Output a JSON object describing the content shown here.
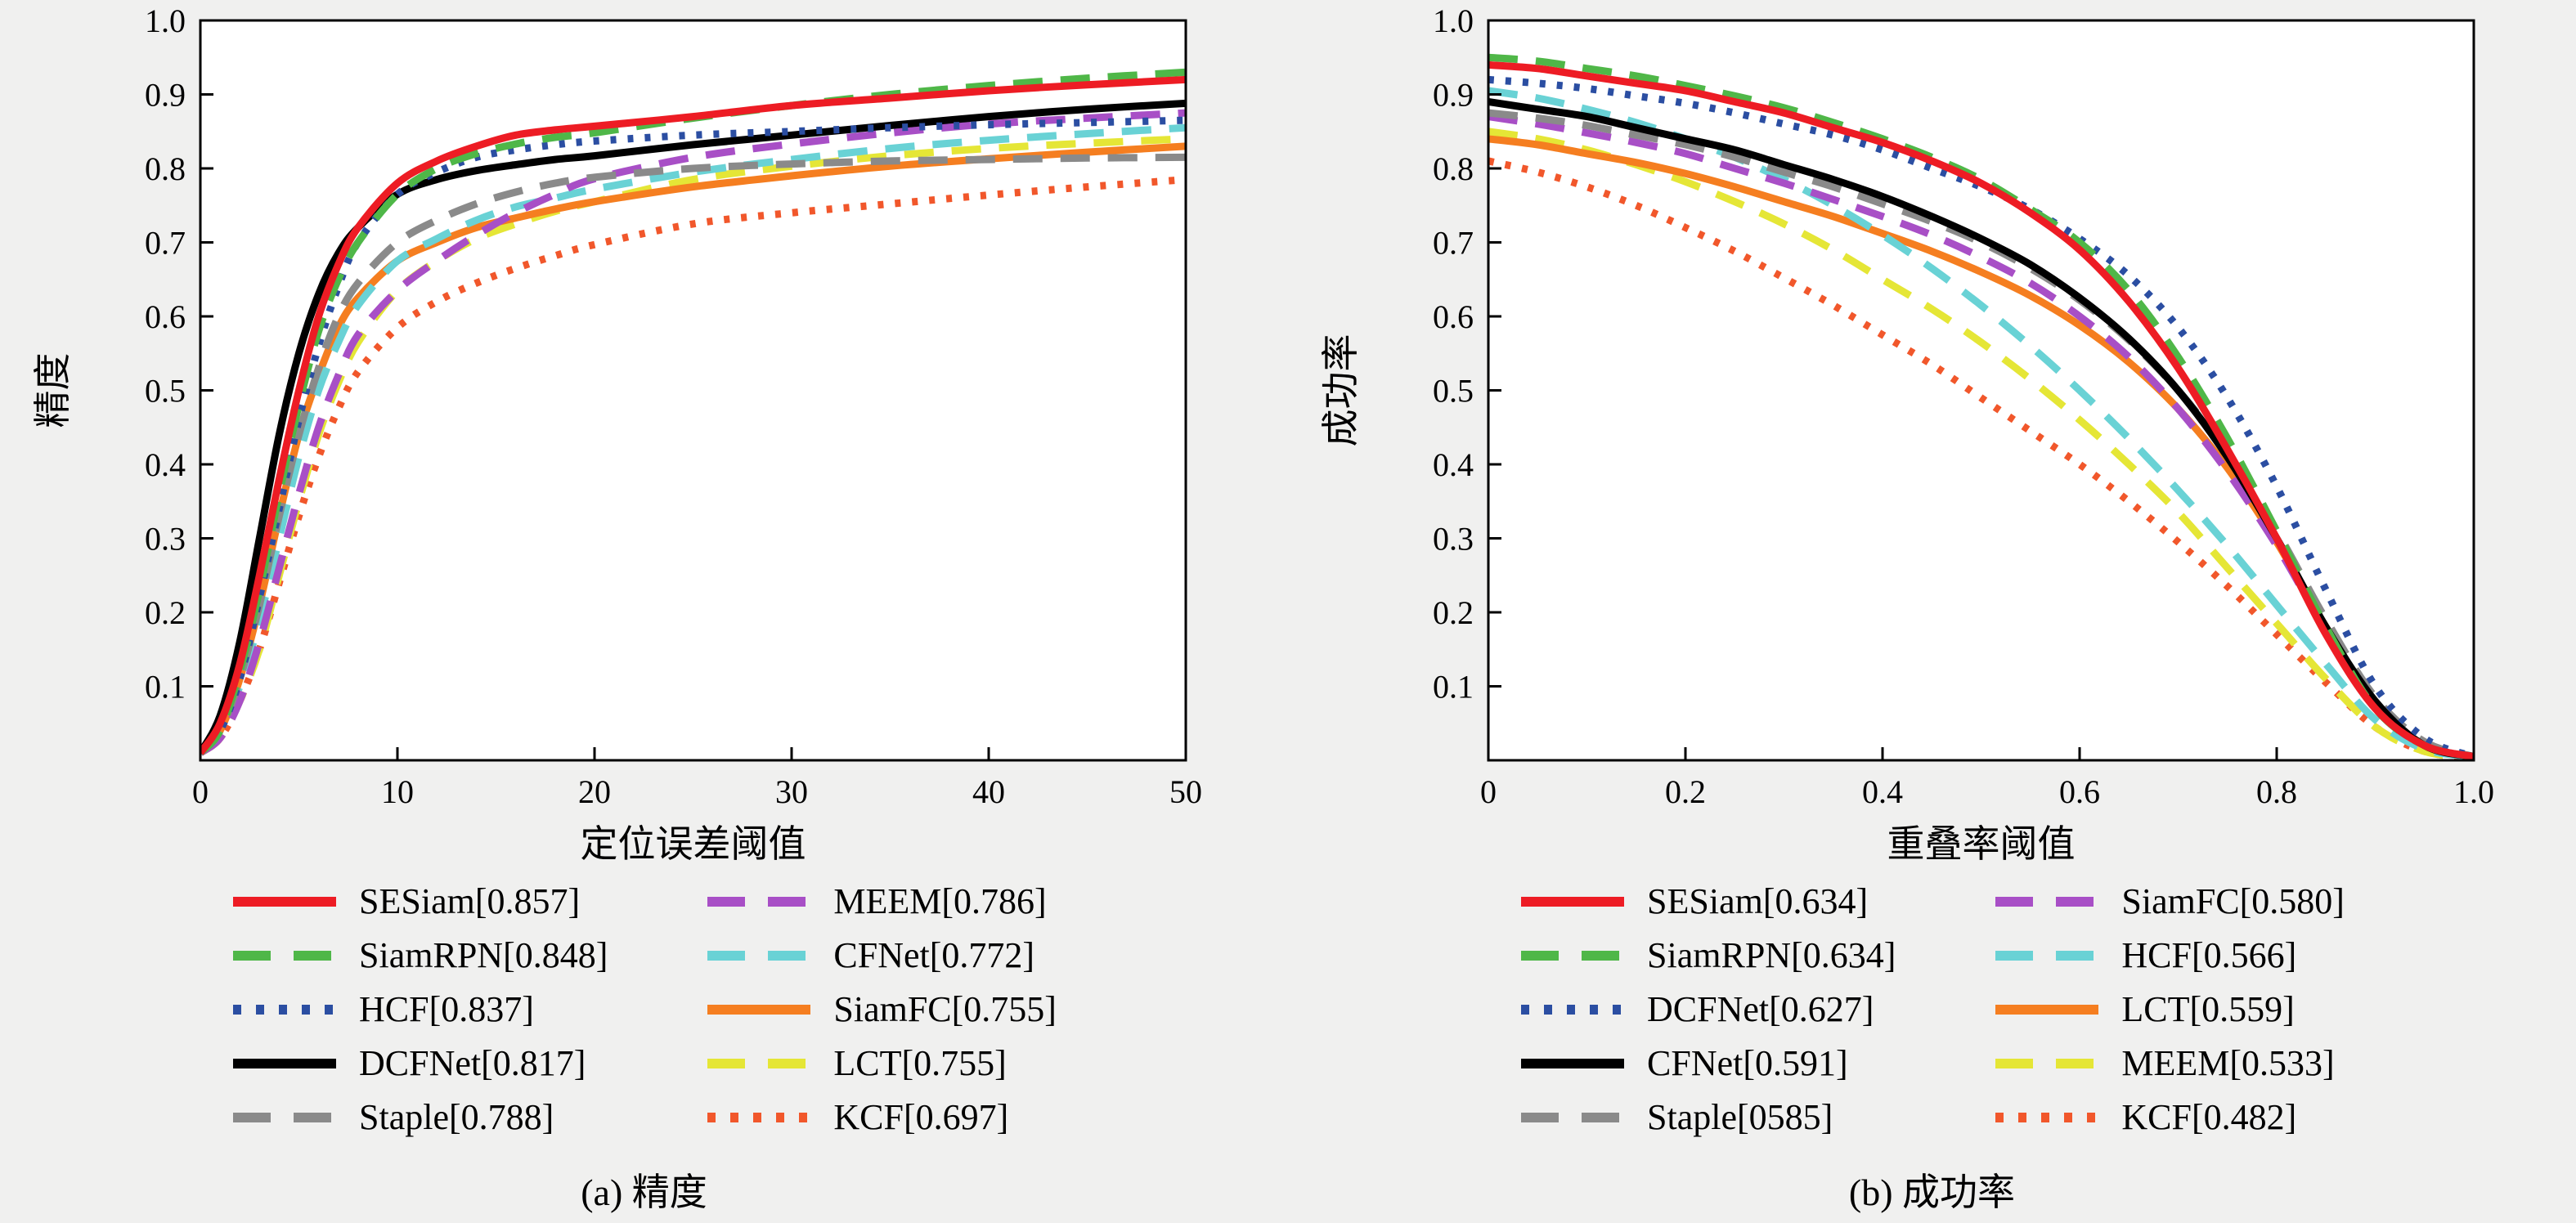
{
  "page": {
    "background": "#f0f0ef",
    "plot_background": "#ffffff",
    "frame_color": "#000000"
  },
  "chart_data": [
    {
      "type": "line",
      "id": "precision",
      "caption": "(a) 精度",
      "xlabel": "定位误差阈值",
      "ylabel": "精度",
      "xlim": [
        0,
        50
      ],
      "ylim": [
        0,
        1.0
      ],
      "xtick_values": [
        0,
        10,
        20,
        30,
        40,
        50
      ],
      "xtick_labels": [
        "0",
        "10",
        "20",
        "30",
        "40",
        "50"
      ],
      "ytick_values": [
        0.1,
        0.2,
        0.3,
        0.4,
        0.5,
        0.6,
        0.7,
        0.8,
        0.9,
        1.0
      ],
      "ytick_labels": [
        "0.1",
        "0.2",
        "0.3",
        "0.4",
        "0.5",
        "0.6",
        "0.7",
        "0.8",
        "0.9",
        "1.0"
      ],
      "grid": false,
      "legend_position": "below",
      "x": [
        0,
        1,
        2,
        3,
        4,
        5,
        6,
        7,
        8,
        10,
        12,
        14,
        16,
        18,
        20,
        25,
        30,
        35,
        40,
        45,
        50
      ],
      "series": [
        {
          "name": "SESiam",
          "label": "SESiam[0.857]",
          "color": "#ed1c24",
          "style": "solid",
          "values": [
            0.01,
            0.05,
            0.13,
            0.25,
            0.38,
            0.5,
            0.6,
            0.67,
            0.72,
            0.78,
            0.81,
            0.83,
            0.845,
            0.852,
            0.857,
            0.87,
            0.885,
            0.895,
            0.905,
            0.913,
            0.92
          ]
        },
        {
          "name": "SiamRPN",
          "label": "SiamRPN[0.848]",
          "color": "#4fb748",
          "style": "dashed",
          "values": [
            0.01,
            0.04,
            0.12,
            0.23,
            0.36,
            0.48,
            0.58,
            0.65,
            0.7,
            0.765,
            0.8,
            0.82,
            0.833,
            0.842,
            0.848,
            0.868,
            0.885,
            0.9,
            0.912,
            0.922,
            0.93
          ]
        },
        {
          "name": "HCF",
          "label": "HCF[0.837]",
          "color": "#2b4ea2",
          "style": "dotted",
          "values": [
            0.01,
            0.04,
            0.11,
            0.22,
            0.34,
            0.46,
            0.56,
            0.64,
            0.7,
            0.765,
            0.795,
            0.815,
            0.825,
            0.832,
            0.837,
            0.845,
            0.85,
            0.855,
            0.859,
            0.862,
            0.865
          ]
        },
        {
          "name": "DCFNet",
          "label": "DCFNet[0.817]",
          "color": "#000000",
          "style": "solid",
          "values": [
            0.01,
            0.06,
            0.16,
            0.3,
            0.44,
            0.55,
            0.63,
            0.685,
            0.72,
            0.765,
            0.785,
            0.797,
            0.805,
            0.812,
            0.817,
            0.832,
            0.845,
            0.858,
            0.87,
            0.88,
            0.888
          ]
        },
        {
          "name": "Staple",
          "label": "Staple[0.788]",
          "color": "#8a8a8a",
          "style": "dashed",
          "values": [
            0.01,
            0.04,
            0.11,
            0.21,
            0.33,
            0.44,
            0.53,
            0.6,
            0.645,
            0.7,
            0.73,
            0.752,
            0.768,
            0.78,
            0.788,
            0.8,
            0.806,
            0.81,
            0.812,
            0.814,
            0.815
          ]
        },
        {
          "name": "MEEM",
          "label": "MEEM[0.786]",
          "color": "#a84fc6",
          "style": "dashed",
          "values": [
            0.01,
            0.03,
            0.08,
            0.16,
            0.26,
            0.36,
            0.45,
            0.52,
            0.575,
            0.635,
            0.675,
            0.71,
            0.74,
            0.765,
            0.786,
            0.815,
            0.833,
            0.848,
            0.86,
            0.868,
            0.875
          ]
        },
        {
          "name": "CFNet",
          "label": "CFNet[0.772]",
          "color": "#69d2d5",
          "style": "dashed",
          "values": [
            0.01,
            0.04,
            0.1,
            0.19,
            0.3,
            0.41,
            0.5,
            0.565,
            0.615,
            0.675,
            0.705,
            0.73,
            0.748,
            0.76,
            0.772,
            0.795,
            0.812,
            0.827,
            0.838,
            0.847,
            0.855
          ]
        },
        {
          "name": "SiamFC",
          "label": "SiamFC[0.755]",
          "color": "#f57e20",
          "style": "solid",
          "values": [
            0.01,
            0.04,
            0.11,
            0.21,
            0.33,
            0.44,
            0.52,
            0.585,
            0.625,
            0.675,
            0.7,
            0.72,
            0.733,
            0.745,
            0.755,
            0.775,
            0.79,
            0.803,
            0.813,
            0.822,
            0.83
          ]
        },
        {
          "name": "LCT",
          "label": "LCT[0.755]",
          "color": "#e5e636",
          "style": "dashed",
          "values": [
            0.01,
            0.03,
            0.08,
            0.15,
            0.25,
            0.35,
            0.44,
            0.51,
            0.565,
            0.635,
            0.675,
            0.705,
            0.725,
            0.742,
            0.755,
            0.785,
            0.803,
            0.817,
            0.827,
            0.834,
            0.84
          ]
        },
        {
          "name": "KCF",
          "label": "KCF[0.697]",
          "color": "#f1572b",
          "style": "dotted",
          "values": [
            0.01,
            0.03,
            0.08,
            0.15,
            0.24,
            0.33,
            0.41,
            0.475,
            0.525,
            0.585,
            0.62,
            0.645,
            0.665,
            0.682,
            0.697,
            0.725,
            0.74,
            0.752,
            0.764,
            0.775,
            0.785
          ]
        }
      ]
    },
    {
      "type": "line",
      "id": "success",
      "caption": "(b) 成功率",
      "xlabel": "重叠率阈值",
      "ylabel": "成功率",
      "xlim": [
        0,
        1.0
      ],
      "ylim": [
        0,
        1.0
      ],
      "xtick_values": [
        0,
        0.2,
        0.4,
        0.6,
        0.8,
        1.0
      ],
      "xtick_labels": [
        "0",
        "0.2",
        "0.4",
        "0.6",
        "0.8",
        "1.0"
      ],
      "ytick_values": [
        0.1,
        0.2,
        0.3,
        0.4,
        0.5,
        0.6,
        0.7,
        0.8,
        0.9,
        1.0
      ],
      "ytick_labels": [
        "0.1",
        "0.2",
        "0.3",
        "0.4",
        "0.5",
        "0.6",
        "0.7",
        "0.8",
        "0.9",
        "1.0"
      ],
      "grid": false,
      "legend_position": "below",
      "x": [
        0,
        0.05,
        0.1,
        0.15,
        0.2,
        0.25,
        0.3,
        0.35,
        0.4,
        0.45,
        0.5,
        0.55,
        0.6,
        0.65,
        0.7,
        0.75,
        0.8,
        0.85,
        0.9,
        0.95,
        1.0
      ],
      "series": [
        {
          "name": "SESiam",
          "label": "SESiam[0.634]",
          "color": "#ed1c24",
          "style": "solid",
          "values": [
            0.94,
            0.935,
            0.925,
            0.915,
            0.905,
            0.89,
            0.875,
            0.855,
            0.835,
            0.81,
            0.78,
            0.74,
            0.69,
            0.62,
            0.53,
            0.42,
            0.3,
            0.17,
            0.07,
            0.02,
            0.005
          ]
        },
        {
          "name": "SiamRPN",
          "label": "SiamRPN[0.634]",
          "color": "#4fb748",
          "style": "dashed",
          "values": [
            0.95,
            0.945,
            0.935,
            0.925,
            0.912,
            0.898,
            0.882,
            0.862,
            0.84,
            0.815,
            0.785,
            0.745,
            0.7,
            0.635,
            0.545,
            0.435,
            0.31,
            0.18,
            0.07,
            0.02,
            0.005
          ]
        },
        {
          "name": "DCFNet",
          "label": "DCFNet[0.627]",
          "color": "#2b4ea2",
          "style": "dotted",
          "values": [
            0.92,
            0.915,
            0.908,
            0.898,
            0.888,
            0.875,
            0.86,
            0.845,
            0.825,
            0.8,
            0.775,
            0.745,
            0.705,
            0.655,
            0.585,
            0.49,
            0.37,
            0.23,
            0.1,
            0.03,
            0.005
          ]
        },
        {
          "name": "CFNet",
          "label": "CFNet[0.591]",
          "color": "#000000",
          "style": "solid",
          "values": [
            0.89,
            0.88,
            0.87,
            0.855,
            0.84,
            0.825,
            0.805,
            0.785,
            0.762,
            0.735,
            0.705,
            0.67,
            0.625,
            0.57,
            0.5,
            0.41,
            0.3,
            0.18,
            0.08,
            0.02,
            0.005
          ]
        },
        {
          "name": "Staple",
          "label": "Staple[0585]",
          "color": "#8a8a8a",
          "style": "dashed",
          "values": [
            0.875,
            0.868,
            0.858,
            0.845,
            0.832,
            0.815,
            0.795,
            0.775,
            0.752,
            0.728,
            0.7,
            0.665,
            0.622,
            0.568,
            0.5,
            0.415,
            0.31,
            0.19,
            0.085,
            0.025,
            0.005
          ]
        },
        {
          "name": "SiamFC",
          "label": "SiamFC[0.580]",
          "color": "#a84fc6",
          "style": "dashed",
          "values": [
            0.87,
            0.86,
            0.848,
            0.835,
            0.82,
            0.8,
            0.78,
            0.758,
            0.735,
            0.71,
            0.68,
            0.645,
            0.6,
            0.545,
            0.475,
            0.39,
            0.29,
            0.175,
            0.07,
            0.02,
            0.005
          ]
        },
        {
          "name": "HCF",
          "label": "HCF[0.566]",
          "color": "#69d2d5",
          "style": "dashed",
          "values": [
            0.905,
            0.895,
            0.88,
            0.862,
            0.84,
            0.815,
            0.785,
            0.75,
            0.71,
            0.665,
            0.615,
            0.56,
            0.5,
            0.435,
            0.365,
            0.29,
            0.21,
            0.13,
            0.055,
            0.015,
            0.005
          ]
        },
        {
          "name": "LCT",
          "label": "LCT[0.559]",
          "color": "#f57e20",
          "style": "solid",
          "values": [
            0.84,
            0.832,
            0.82,
            0.808,
            0.793,
            0.775,
            0.755,
            0.735,
            0.712,
            0.688,
            0.66,
            0.628,
            0.588,
            0.538,
            0.475,
            0.395,
            0.295,
            0.18,
            0.075,
            0.02,
            0.005
          ]
        },
        {
          "name": "MEEM",
          "label": "MEEM[0.533]",
          "color": "#e5e636",
          "style": "dashed",
          "values": [
            0.85,
            0.84,
            0.825,
            0.805,
            0.782,
            0.755,
            0.725,
            0.69,
            0.65,
            0.61,
            0.565,
            0.515,
            0.46,
            0.4,
            0.335,
            0.26,
            0.185,
            0.11,
            0.045,
            0.012,
            0.003
          ]
        },
        {
          "name": "KCF",
          "label": "KCF[0.482]",
          "color": "#f1572b",
          "style": "dotted",
          "values": [
            0.81,
            0.795,
            0.775,
            0.75,
            0.72,
            0.688,
            0.652,
            0.615,
            0.575,
            0.535,
            0.49,
            0.445,
            0.4,
            0.35,
            0.295,
            0.235,
            0.17,
            0.105,
            0.045,
            0.012,
            0.003
          ]
        }
      ]
    }
  ]
}
